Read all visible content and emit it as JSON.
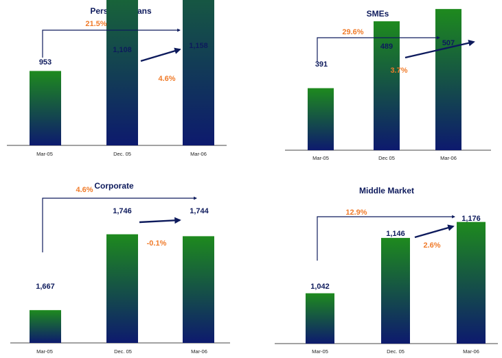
{
  "colors": {
    "bar_top": "#1e8a1e",
    "bar_bottom": "#0d1a6e",
    "text": "#0d1a5c",
    "growth": "#f07b2a",
    "arrow": "#0d1a5c"
  },
  "chart_data": [
    {
      "type": "bar",
      "title": "Personal Loans",
      "categories": [
        "Mar-05",
        "Dec. 05",
        "Mar-06"
      ],
      "values": [
        953,
        1108,
        1158
      ],
      "value_labels": [
        "953",
        "1,108",
        "1,158"
      ],
      "growth_yoy": "21.5%",
      "growth_qoq": "4.6%",
      "grid": false,
      "legend": "none"
    },
    {
      "type": "bar",
      "title": "SMEs",
      "categories": [
        "Mar-05",
        "Dec 05",
        "Mar-06"
      ],
      "values": [
        391,
        489,
        507
      ],
      "value_labels": [
        "391",
        "489",
        "507"
      ],
      "growth_yoy": "29.6%",
      "growth_qoq": "3.7%",
      "grid": false,
      "legend": "none"
    },
    {
      "type": "bar",
      "title": "Corporate",
      "categories": [
        "Mar-05",
        "Dec. 05",
        "Mar-06"
      ],
      "values": [
        1667,
        1746,
        1744
      ],
      "value_labels": [
        "1,667",
        "1,746",
        "1,744"
      ],
      "growth_yoy": "4.6%",
      "growth_qoq": "-0.1%",
      "grid": false,
      "legend": "none"
    },
    {
      "type": "bar",
      "title": "Middle Market",
      "categories": [
        "Mar-05",
        "Dec. 05",
        "Mar-06"
      ],
      "values": [
        1042,
        1146,
        1176
      ],
      "value_labels": [
        "1,042",
        "1,146",
        "1,176"
      ],
      "growth_yoy": "12.9%",
      "growth_qoq": "2.6%",
      "grid": false,
      "legend": "none"
    }
  ]
}
